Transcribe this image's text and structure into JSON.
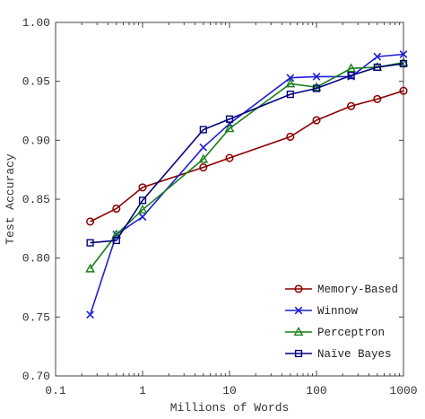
{
  "chart_data": {
    "type": "line",
    "xlabel": "Millions of Words",
    "ylabel": "Test Accuracy",
    "xscale": "log",
    "xlim": [
      0.1,
      1000
    ],
    "ylim": [
      0.7,
      1.0
    ],
    "xticks": [
      0.1,
      1,
      10,
      100,
      1000
    ],
    "xtick_labels": [
      "0.1",
      "1",
      "10",
      "100",
      "1000"
    ],
    "yticks": [
      0.7,
      0.75,
      0.8,
      0.85,
      0.9,
      0.95,
      1.0
    ],
    "ytick_labels": [
      "0.70",
      "0.75",
      "0.80",
      "0.85",
      "0.90",
      "0.95",
      "1.00"
    ],
    "grid": false,
    "legend_position": "bottom-right",
    "series": [
      {
        "name": "Memory-Based",
        "color": "#8b0000",
        "marker": "circle",
        "x": [
          0.25,
          0.5,
          1,
          5,
          10,
          50,
          100,
          250,
          500,
          1000
        ],
        "y": [
          0.831,
          0.842,
          0.86,
          0.877,
          0.885,
          0.903,
          0.917,
          0.929,
          0.935,
          0.942
        ]
      },
      {
        "name": "Winnow",
        "color": "#1f1fd6",
        "marker": "x",
        "x": [
          0.25,
          0.5,
          1,
          5,
          10,
          50,
          100,
          250,
          500,
          1000
        ],
        "y": [
          0.752,
          0.82,
          0.835,
          0.894,
          0.914,
          0.953,
          0.954,
          0.954,
          0.971,
          0.973
        ]
      },
      {
        "name": "Perceptron",
        "color": "#1a7f1a",
        "marker": "triangle",
        "x": [
          0.25,
          0.5,
          1,
          5,
          10,
          50,
          100,
          250,
          500,
          1000
        ],
        "y": [
          0.791,
          0.82,
          0.841,
          0.884,
          0.91,
          0.948,
          0.945,
          0.961,
          0.962,
          0.966
        ]
      },
      {
        "name": "Naïve Bayes",
        "color": "#00007a",
        "marker": "square",
        "x": [
          0.25,
          0.5,
          1,
          5,
          10,
          50,
          100,
          250,
          500,
          1000
        ],
        "y": [
          0.813,
          0.815,
          0.849,
          0.909,
          0.918,
          0.939,
          0.944,
          0.955,
          0.962,
          0.965
        ]
      }
    ]
  }
}
